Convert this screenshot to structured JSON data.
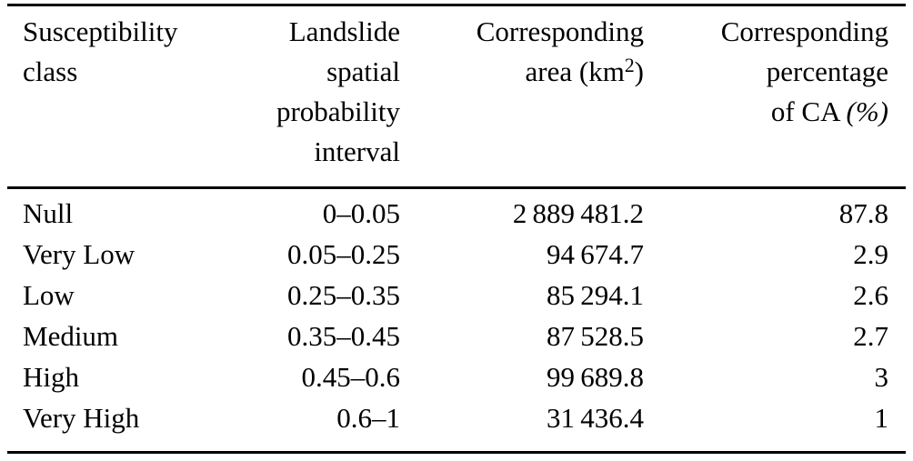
{
  "table": {
    "columns": [
      {
        "id": "susceptibility_class",
        "align": "left",
        "header_lines": [
          "Susceptibility",
          "class"
        ]
      },
      {
        "id": "probability_interval",
        "align": "right",
        "header_lines": [
          "Landslide",
          "spatial",
          "probability",
          "interval"
        ]
      },
      {
        "id": "area",
        "align": "right",
        "header_line1": "Corresponding",
        "header_line2_prefix": "area (km",
        "header_line2_sup": "2",
        "header_line2_suffix": ")"
      },
      {
        "id": "percentage",
        "align": "right",
        "header_line1": "Corresponding",
        "header_line2": "percentage",
        "header_line3_prefix": "of CA",
        "header_line3_unit": "(%)"
      }
    ],
    "rows": [
      {
        "class": "Null",
        "interval": "0–0.05",
        "area": "2 889 481.2",
        "percentage": "87.8"
      },
      {
        "class": "Very Low",
        "interval": "0.05–0.25",
        "area": "94 674.7",
        "percentage": "2.9"
      },
      {
        "class": "Low",
        "interval": "0.25–0.35",
        "area": "85 294.1",
        "percentage": "2.6"
      },
      {
        "class": "Medium",
        "interval": "0.35–0.45",
        "area": "87 528.5",
        "percentage": "2.7"
      },
      {
        "class": "High",
        "interval": "0.45–0.6",
        "area": "99 689.8",
        "percentage": "3"
      },
      {
        "class": "Very High",
        "interval": "0.6–1",
        "area": "31 436.4",
        "percentage": "1"
      }
    ]
  },
  "colors": {
    "background": "#ffffff",
    "text": "#000000",
    "rule": "#000000"
  },
  "chart_data": {
    "type": "table",
    "columns": [
      "Susceptibility class",
      "Landslide spatial probability interval",
      "Corresponding area (km2)",
      "Corresponding percentage of CA (%)"
    ],
    "rows": [
      [
        "Null",
        "0–0.05",
        2889481.2,
        87.8
      ],
      [
        "Very Low",
        "0.05–0.25",
        94674.7,
        2.9
      ],
      [
        "Low",
        "0.25–0.35",
        85294.1,
        2.6
      ],
      [
        "Medium",
        "0.35–0.45",
        87528.5,
        2.7
      ],
      [
        "High",
        "0.45–0.6",
        99689.8,
        3
      ],
      [
        "Very High",
        "0.6–1",
        31436.4,
        1
      ]
    ]
  }
}
